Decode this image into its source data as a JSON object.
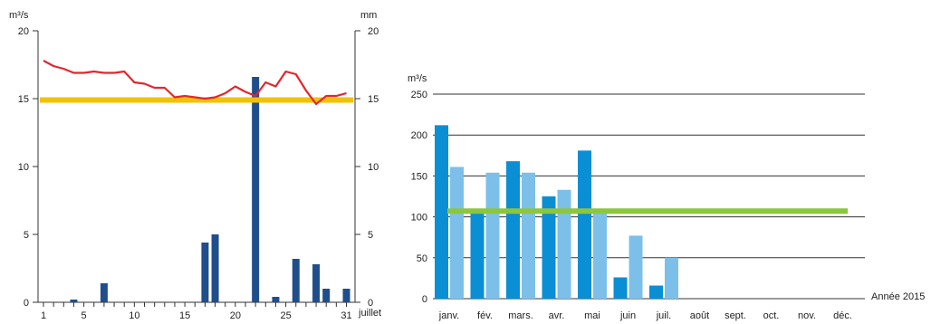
{
  "chart_data": [
    {
      "type": "bar",
      "left_axis_unit": "m³/s",
      "right_axis_unit": "mm",
      "x_month_label": "juillet",
      "left_ticks": [
        0,
        5,
        10,
        15,
        20
      ],
      "right_ticks": [
        0,
        5,
        10,
        15,
        20
      ],
      "x_tick_labels": [
        "1",
        "5",
        "10",
        "15",
        "20",
        "25",
        "31"
      ],
      "ylim": [
        0,
        20
      ],
      "days": 31,
      "rainfall_mm": {
        "x": [
          4,
          7,
          17,
          18,
          22,
          24,
          26,
          28,
          29,
          31
        ],
        "values": [
          0.2,
          1.4,
          4.4,
          5.0,
          16.6,
          0.4,
          3.2,
          2.8,
          1.0,
          1.0
        ]
      },
      "daily_flow": {
        "x": [
          1,
          2,
          3,
          4,
          5,
          6,
          7,
          8,
          9,
          10,
          11,
          12,
          13,
          14,
          15,
          16,
          17,
          18,
          19,
          20,
          21,
          22,
          23,
          24,
          25,
          26,
          27,
          28,
          29,
          30,
          31
        ],
        "values": [
          17.8,
          17.4,
          17.2,
          16.9,
          16.9,
          17.0,
          16.9,
          16.9,
          17.0,
          16.2,
          16.1,
          15.8,
          15.8,
          15.1,
          15.2,
          15.1,
          15.0,
          15.1,
          15.4,
          15.9,
          15.5,
          15.2,
          16.2,
          15.9,
          17.0,
          16.8,
          15.6,
          14.6,
          15.2,
          15.2,
          15.4
        ]
      },
      "reference_flow": 14.9,
      "colors": {
        "rain": "#1f4e8c",
        "flow": "#e3262e",
        "reference": "#f2c200"
      }
    },
    {
      "type": "bar",
      "y_axis_unit": "m³/s",
      "year_label": "Année 2015",
      "categories": [
        "janv.",
        "fév.",
        "mars.",
        "avr.",
        "mai",
        "juin",
        "juil.",
        "août",
        "sept.",
        "oct.",
        "nov.",
        "déc."
      ],
      "y_ticks": [
        0,
        50,
        100,
        150,
        200,
        250
      ],
      "ylim": [
        0,
        250
      ],
      "series": [
        {
          "values": [
            212,
            104,
            168,
            125,
            181,
            26,
            16,
            null,
            null,
            null,
            null,
            null
          ],
          "color": "#0a8fd4"
        },
        {
          "values": [
            161,
            154,
            154,
            133,
            104,
            77,
            50,
            null,
            null,
            null,
            null,
            null
          ],
          "color": "#7cc0ea"
        }
      ],
      "reference_flow": 107,
      "reference_color": "#8cc63f"
    }
  ]
}
